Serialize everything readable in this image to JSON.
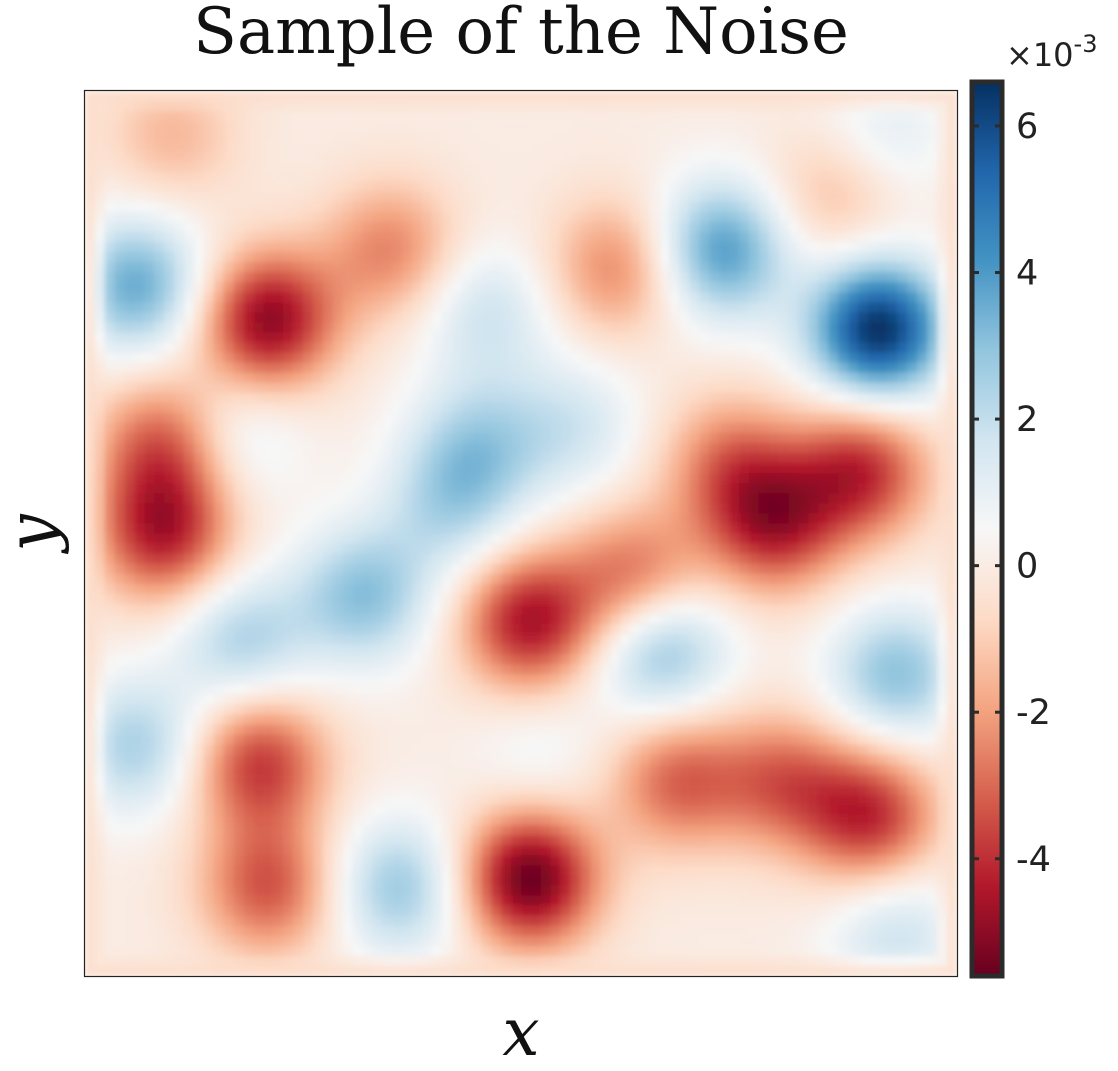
{
  "chart_data": {
    "type": "heatmap",
    "title": "Sample of the Noise",
    "xlabel": "x",
    "ylabel": "y",
    "colormap": "RdBu (diverging: red negative, white zero, blue positive)",
    "colorbar": {
      "multiplier_label": "×10",
      "multiplier_exponent": "-3",
      "range": [
        -5.6,
        6.6
      ],
      "ticks": [
        -4,
        -2,
        0,
        2,
        4,
        6
      ],
      "tick_labels": [
        "-4",
        "-2",
        "0",
        "2",
        "4",
        "6"
      ],
      "units_scale": 0.001
    },
    "axes_ticks_visible": false,
    "grid": false,
    "field_components": [
      {
        "x": 0.06,
        "y": 0.78,
        "value": 3.6
      },
      {
        "x": 0.21,
        "y": 0.74,
        "value": -5.0
      },
      {
        "x": 0.73,
        "y": 0.82,
        "value": 4.0
      },
      {
        "x": 0.91,
        "y": 0.73,
        "value": 6.6
      },
      {
        "x": 0.92,
        "y": 0.95,
        "value": 1.2
      },
      {
        "x": 0.1,
        "y": 0.95,
        "value": -1.5
      },
      {
        "x": 0.35,
        "y": 0.82,
        "value": -2.5
      },
      {
        "x": 0.61,
        "y": 0.8,
        "value": -2.5
      },
      {
        "x": 0.86,
        "y": 0.88,
        "value": -1.5
      },
      {
        "x": 0.46,
        "y": 0.75,
        "value": 1.8
      },
      {
        "x": 0.45,
        "y": 0.6,
        "value": 2.2
      },
      {
        "x": 0.42,
        "y": 0.53,
        "value": 2.0
      },
      {
        "x": 0.56,
        "y": 0.62,
        "value": 1.6
      },
      {
        "x": 0.32,
        "y": 0.43,
        "value": 3.0
      },
      {
        "x": 0.18,
        "y": 0.38,
        "value": 2.4
      },
      {
        "x": 0.17,
        "y": 0.61,
        "value": 1.4
      },
      {
        "x": 0.09,
        "y": 0.5,
        "value": -4.2
      },
      {
        "x": 0.09,
        "y": 0.6,
        "value": -3.2
      },
      {
        "x": 0.74,
        "y": 0.58,
        "value": -2.5
      },
      {
        "x": 0.79,
        "y": 0.51,
        "value": -4.0
      },
      {
        "x": 0.89,
        "y": 0.57,
        "value": -4.0
      },
      {
        "x": 0.51,
        "y": 0.4,
        "value": -4.5
      },
      {
        "x": 0.63,
        "y": 0.45,
        "value": -3.0
      },
      {
        "x": 0.66,
        "y": 0.37,
        "value": 3.2
      },
      {
        "x": 0.93,
        "y": 0.34,
        "value": 3.0
      },
      {
        "x": 0.06,
        "y": 0.26,
        "value": 2.5
      },
      {
        "x": 0.52,
        "y": 0.25,
        "value": 0.8
      },
      {
        "x": 0.2,
        "y": 0.24,
        "value": -3.8
      },
      {
        "x": 0.21,
        "y": 0.1,
        "value": -3.3
      },
      {
        "x": 0.36,
        "y": 0.1,
        "value": 2.8
      },
      {
        "x": 0.51,
        "y": 0.11,
        "value": -5.6
      },
      {
        "x": 0.68,
        "y": 0.22,
        "value": -3.0
      },
      {
        "x": 0.8,
        "y": 0.22,
        "value": -2.8
      },
      {
        "x": 0.9,
        "y": 0.18,
        "value": -4.0
      },
      {
        "x": 0.93,
        "y": 0.05,
        "value": 1.8
      }
    ]
  }
}
